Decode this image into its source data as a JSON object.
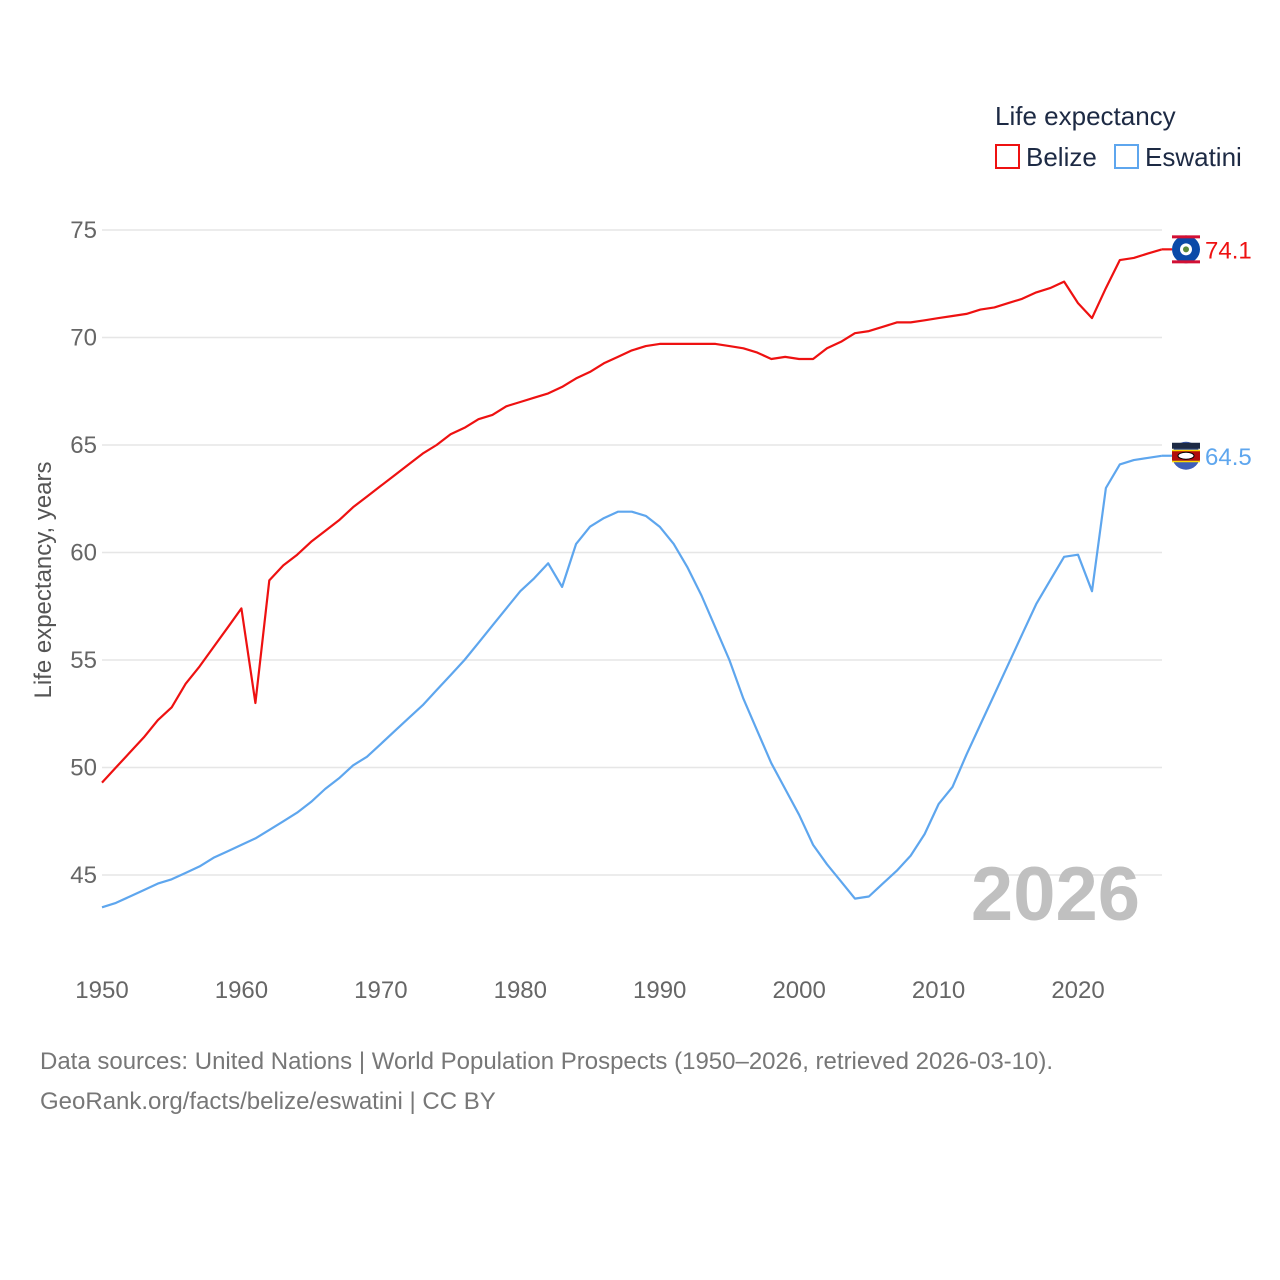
{
  "chart_data": {
    "type": "line",
    "title": "",
    "xlabel": "",
    "ylabel": "Life expectancy, years",
    "xlim": [
      1950,
      2026
    ],
    "ylim": [
      42.5,
      77
    ],
    "x_ticks": [
      1950,
      1960,
      1970,
      1980,
      1990,
      2000,
      2010,
      2020
    ],
    "y_ticks": [
      45,
      50,
      55,
      60,
      65,
      70,
      75
    ],
    "grid": true,
    "legend_title": "Life expectancy",
    "legend_position": "top-right",
    "year_watermark": "2026",
    "x_start": 1950,
    "series": [
      {
        "name": "Belize",
        "color": "#ee1111",
        "end_label": "74.1",
        "values": [
          49.3,
          50.0,
          50.7,
          51.4,
          52.2,
          52.8,
          53.9,
          54.7,
          55.6,
          56.5,
          57.4,
          53.0,
          58.7,
          59.4,
          59.9,
          60.5,
          61.0,
          61.5,
          62.1,
          62.6,
          63.1,
          63.6,
          64.1,
          64.6,
          65.0,
          65.5,
          65.8,
          66.2,
          66.4,
          66.8,
          67.0,
          67.2,
          67.4,
          67.7,
          68.1,
          68.4,
          68.8,
          69.1,
          69.4,
          69.6,
          69.7,
          69.7,
          69.7,
          69.7,
          69.7,
          69.6,
          69.5,
          69.3,
          69.0,
          69.1,
          69.0,
          69.0,
          69.5,
          69.8,
          70.2,
          70.3,
          70.5,
          70.7,
          70.7,
          70.8,
          70.9,
          71.0,
          71.1,
          71.3,
          71.4,
          71.6,
          71.8,
          72.1,
          72.3,
          72.6,
          71.6,
          70.9,
          72.3,
          73.6,
          73.7,
          73.9,
          74.1
        ]
      },
      {
        "name": "Eswatini",
        "color": "#5ea6ee",
        "end_label": "64.5",
        "values": [
          43.5,
          43.7,
          44.0,
          44.3,
          44.6,
          44.8,
          45.1,
          45.4,
          45.8,
          46.1,
          46.4,
          46.7,
          47.1,
          47.5,
          47.9,
          48.4,
          49.0,
          49.5,
          50.1,
          50.5,
          51.1,
          51.7,
          52.3,
          52.9,
          53.6,
          54.3,
          55.0,
          55.8,
          56.6,
          57.4,
          58.2,
          58.8,
          59.5,
          58.4,
          60.4,
          61.2,
          61.6,
          61.9,
          61.9,
          61.7,
          61.2,
          60.4,
          59.3,
          58.0,
          56.5,
          55.0,
          53.2,
          51.7,
          50.2,
          49.0,
          47.8,
          46.4,
          45.5,
          44.7,
          43.9,
          44.0,
          44.6,
          45.2,
          45.9,
          46.9,
          48.3,
          49.1,
          50.6,
          52.0,
          53.4,
          54.8,
          56.2,
          57.6,
          58.7,
          59.8,
          59.9,
          58.2,
          63.0,
          64.1,
          64.3,
          64.4,
          64.5
        ]
      }
    ]
  },
  "footer": {
    "line1": "Data sources: United Nations | World Population Prospects (1950–2026, retrieved 2026-03-10).",
    "line2": "GeoRank.org/facts/belize/eswatini | CC BY"
  }
}
